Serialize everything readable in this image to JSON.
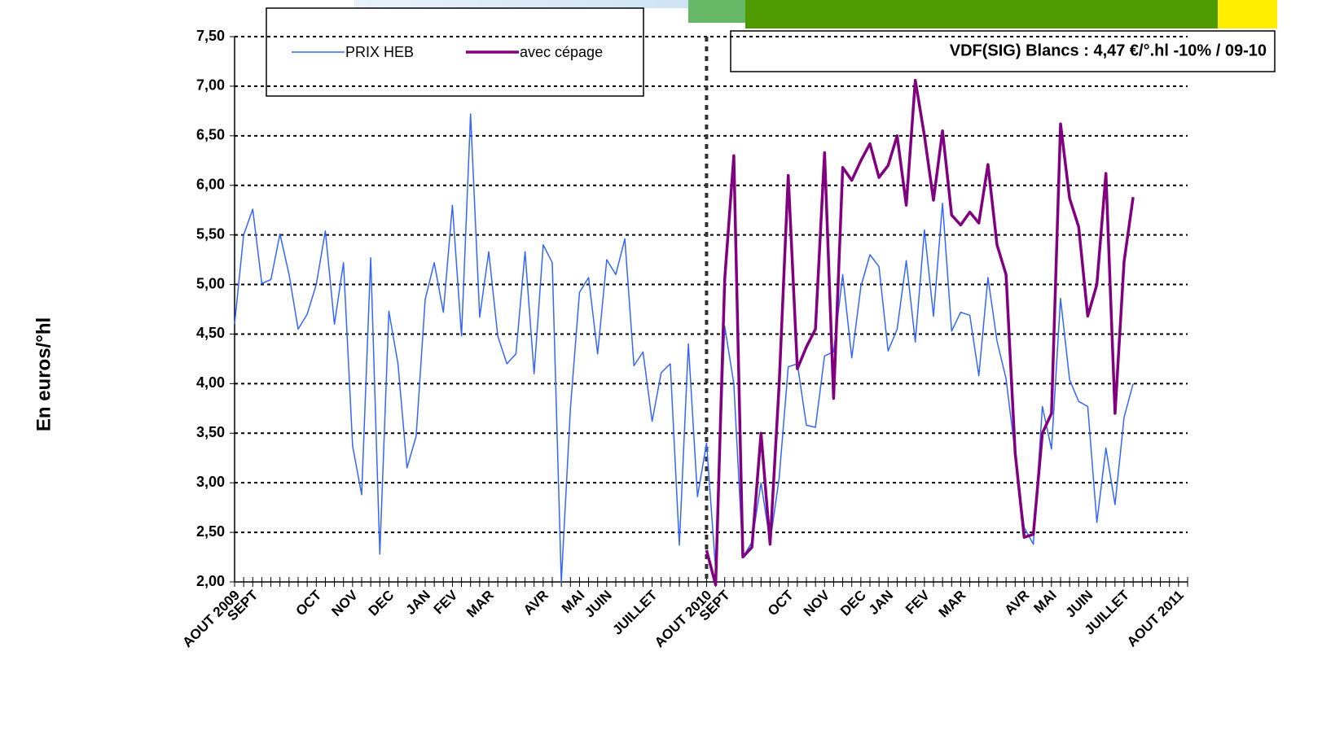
{
  "chart_data": {
    "type": "line",
    "ylabel": "En euros/°hl",
    "annotation": "VDF(SIG) Blancs : 4,47 €/°.hl -10% / 09-10",
    "categories": [
      "AOUT 2009",
      null,
      "SEPT",
      null,
      null,
      null,
      null,
      null,
      null,
      "OCT",
      null,
      null,
      null,
      "NOV",
      null,
      null,
      null,
      "DEC",
      null,
      null,
      null,
      "JAN",
      null,
      null,
      "FEV",
      null,
      null,
      null,
      "MAR",
      null,
      null,
      null,
      null,
      null,
      "AVR",
      null,
      null,
      null,
      "MAI",
      null,
      null,
      "JUIN",
      null,
      null,
      null,
      null,
      "JUILLET",
      null,
      null,
      null,
      null,
      null,
      "AOUT 2010",
      null,
      "SEPT",
      null,
      null,
      null,
      null,
      null,
      null,
      "OCT",
      null,
      null,
      null,
      "NOV",
      null,
      null,
      null,
      "DEC",
      null,
      null,
      "JAN",
      null,
      null,
      null,
      "FEV",
      null,
      null,
      null,
      "MAR",
      null,
      null,
      null,
      null,
      null,
      null,
      "AVR",
      null,
      null,
      "MAI",
      null,
      null,
      null,
      "JUIN",
      null,
      null,
      null,
      "JUILLET",
      null,
      null,
      null,
      null,
      null,
      "AOUT 2011",
      null
    ],
    "series": [
      {
        "name": "PRIX HEB",
        "color": "#3366ff",
        "values": [
          4.6,
          5.5,
          5.76,
          5.01,
          5.05,
          5.51,
          5.1,
          4.55,
          4.7,
          5.0,
          5.54,
          4.6,
          5.22,
          3.37,
          2.88,
          5.27,
          2.28,
          4.73,
          4.2,
          3.15,
          3.47,
          4.85,
          5.22,
          4.72,
          5.8,
          4.48,
          6.72,
          4.67,
          5.33,
          4.48,
          4.2,
          4.3,
          5.33,
          4.1,
          5.4,
          5.22,
          2.0,
          3.75,
          4.92,
          5.07,
          4.3,
          5.25,
          5.1,
          5.46,
          4.18,
          4.32,
          3.62,
          4.11,
          4.2,
          2.37,
          4.4,
          2.86,
          3.4,
          2.12,
          4.58,
          4.0,
          2.25,
          2.4,
          3.0,
          2.4,
          3.05,
          4.17,
          4.2,
          3.58,
          3.56,
          4.28,
          4.32,
          5.1,
          4.26,
          4.98,
          5.3,
          5.18,
          4.33,
          4.55,
          5.24,
          4.42,
          5.55,
          4.68,
          5.82,
          4.53,
          4.72,
          4.69,
          4.08,
          5.07,
          4.43,
          4.05,
          3.3,
          2.55,
          2.38,
          3.77,
          3.34,
          4.86,
          4.04,
          3.82,
          3.77,
          2.6,
          3.35,
          2.78,
          3.66,
          4.0,
          null,
          null,
          null,
          null,
          null,
          null
        ]
      },
      {
        "name": "avec cépage",
        "color": "#800080",
        "values": [
          null,
          null,
          null,
          null,
          null,
          null,
          null,
          null,
          null,
          null,
          null,
          null,
          null,
          null,
          null,
          null,
          null,
          null,
          null,
          null,
          null,
          null,
          null,
          null,
          null,
          null,
          null,
          null,
          null,
          null,
          null,
          null,
          null,
          null,
          null,
          null,
          null,
          null,
          null,
          null,
          null,
          null,
          null,
          null,
          null,
          null,
          null,
          null,
          null,
          null,
          null,
          null,
          2.32,
          1.97,
          5.05,
          6.3,
          2.25,
          2.35,
          3.5,
          2.38,
          4.0,
          6.1,
          4.15,
          4.37,
          4.55,
          6.33,
          3.85,
          6.18,
          6.05,
          6.25,
          6.42,
          6.08,
          6.2,
          6.5,
          5.8,
          7.06,
          6.5,
          5.85,
          6.55,
          5.7,
          5.6,
          5.73,
          5.62,
          6.21,
          5.4,
          5.1,
          3.3,
          2.45,
          2.48,
          3.5,
          3.7,
          6.62,
          5.87,
          5.58,
          4.68,
          5.0,
          6.12,
          3.7,
          5.23,
          5.88,
          null,
          null,
          null,
          null,
          null,
          null
        ]
      }
    ],
    "ylim": [
      2,
      7.5
    ],
    "yticks": [
      {
        "value": 2,
        "label": "2,00"
      },
      {
        "value": 2.5,
        "label": "2,50"
      },
      {
        "value": 3,
        "label": "3,00"
      },
      {
        "value": 3.5,
        "label": "3,50"
      },
      {
        "value": 4,
        "label": "4,00"
      },
      {
        "value": 4.5,
        "label": "4,50"
      },
      {
        "value": 5,
        "label": "5,00"
      },
      {
        "value": 5.5,
        "label": "5,50"
      },
      {
        "value": 6,
        "label": "6,00"
      },
      {
        "value": 6.5,
        "label": "6,50"
      },
      {
        "value": 7,
        "label": "7,00"
      },
      {
        "value": 7.5,
        "label": "7,50"
      }
    ],
    "grid": true
  }
}
